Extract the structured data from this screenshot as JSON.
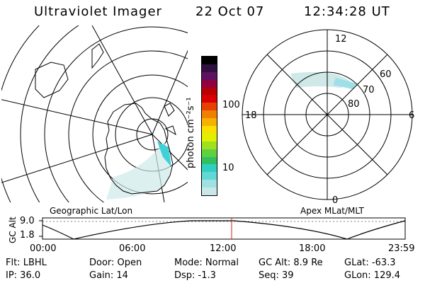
{
  "header": {
    "instrument": "Ultraviolet Imager",
    "date": "22 Oct 07",
    "time": "12:34:28 UT"
  },
  "geo_panel": {
    "label": "Geographic Lat/Lon"
  },
  "apex_panel": {
    "label": "Apex MLat/MLT",
    "mlt_labels": {
      "top": "12",
      "left": "18",
      "right": "6",
      "bottom": "0"
    },
    "lat_labels": [
      "60",
      "70",
      "80"
    ]
  },
  "colorbar": {
    "unit_label": "photon cm⁻²s⁻¹",
    "ticks": [
      "100",
      "10"
    ],
    "colors": [
      "#c8e8e8",
      "#a0e0e0",
      "#60d8d8",
      "#30d0c0",
      "#30c060",
      "#60d040",
      "#a0e020",
      "#e0f000",
      "#f8e000",
      "#f8b000",
      "#f08000",
      "#e84000",
      "#d80000",
      "#b80000",
      "#900040",
      "#601060",
      "#301040",
      "#000000"
    ]
  },
  "timeline": {
    "axis_label": "GC Alt",
    "y_ticks": [
      "9.0",
      "1.8"
    ],
    "x_ticks": [
      "00:00",
      "06:00",
      "12:00",
      "18:00",
      "23:59"
    ],
    "current_time_marker_color": "#cc2222"
  },
  "status": {
    "flt": "Flt: LBHL",
    "door": "Door: Open",
    "mode": "Mode: Normal",
    "gc_alt": "GC Alt: 8.9 Re",
    "glat": "GLat: -63.3",
    "ip": "IP: 36.0",
    "gain": "Gain: 14",
    "dsp": "Dsp: -1.3",
    "seq": "Seq: 39",
    "glon": "GLon: 129.4"
  }
}
